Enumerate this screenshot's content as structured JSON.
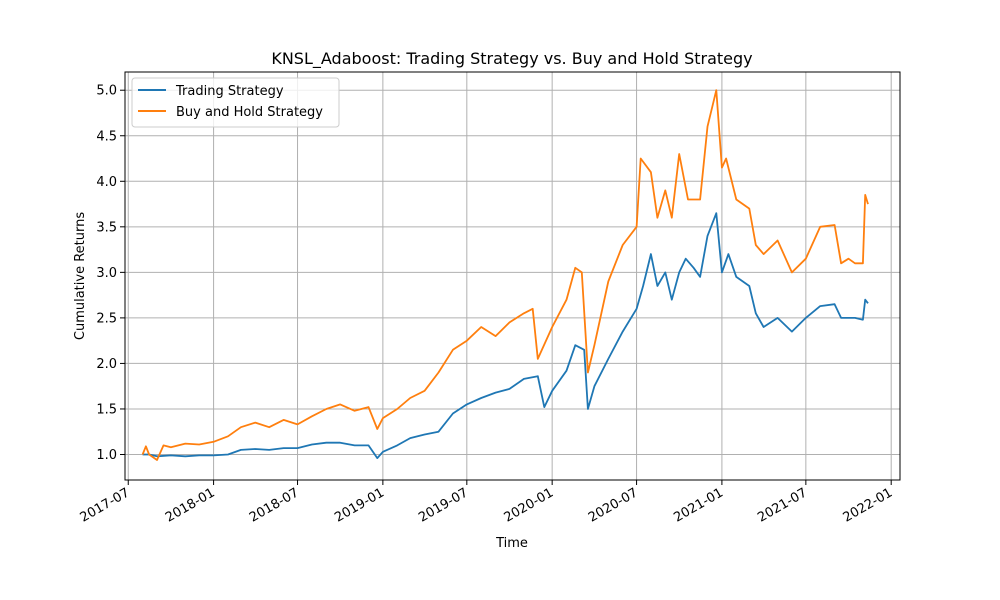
{
  "chart_data": {
    "type": "line",
    "title": "KNSL_Adaboost: Trading Strategy vs. Buy and Hold Strategy",
    "xlabel": "Time",
    "ylabel": "Cumulative Returns",
    "xlim": [
      "2017-06-24",
      "2022-01-20"
    ],
    "ylim": [
      0.72,
      5.2
    ],
    "x_ticks": [
      "2017-07-01",
      "2018-01-01",
      "2018-07-01",
      "2019-01-01",
      "2019-07-01",
      "2020-01-01",
      "2020-07-01",
      "2021-01-01",
      "2021-07-01",
      "2022-01-01"
    ],
    "x_tick_labels": [
      "2017-07",
      "2018-01",
      "2018-07",
      "2019-01",
      "2019-07",
      "2020-01",
      "2020-07",
      "2021-01",
      "2021-07",
      "2022-01"
    ],
    "y_ticks": [
      1.0,
      1.5,
      2.0,
      2.5,
      3.0,
      3.5,
      4.0,
      4.5,
      5.0
    ],
    "y_tick_labels": [
      "1.0",
      "1.5",
      "2.0",
      "2.5",
      "3.0",
      "3.5",
      "4.0",
      "4.5",
      "5.0"
    ],
    "grid": true,
    "legend_position": "top-left",
    "series": [
      {
        "name": "Trading Strategy",
        "color": "#1f77b4",
        "points": [
          [
            "2017-08-01",
            1.0
          ],
          [
            "2017-08-15",
            1.0
          ],
          [
            "2017-09-01",
            0.98
          ],
          [
            "2017-10-01",
            0.99
          ],
          [
            "2017-11-01",
            0.98
          ],
          [
            "2017-12-01",
            0.99
          ],
          [
            "2018-01-01",
            0.99
          ],
          [
            "2018-02-01",
            1.0
          ],
          [
            "2018-03-01",
            1.05
          ],
          [
            "2018-04-01",
            1.06
          ],
          [
            "2018-05-01",
            1.05
          ],
          [
            "2018-06-01",
            1.07
          ],
          [
            "2018-07-01",
            1.07
          ],
          [
            "2018-08-01",
            1.11
          ],
          [
            "2018-09-01",
            1.13
          ],
          [
            "2018-10-01",
            1.13
          ],
          [
            "2018-11-01",
            1.1
          ],
          [
            "2018-12-01",
            1.1
          ],
          [
            "2018-12-20",
            0.96
          ],
          [
            "2019-01-01",
            1.03
          ],
          [
            "2019-02-01",
            1.1
          ],
          [
            "2019-03-01",
            1.18
          ],
          [
            "2019-04-01",
            1.22
          ],
          [
            "2019-05-01",
            1.25
          ],
          [
            "2019-06-01",
            1.45
          ],
          [
            "2019-07-01",
            1.55
          ],
          [
            "2019-08-01",
            1.62
          ],
          [
            "2019-09-01",
            1.68
          ],
          [
            "2019-10-01",
            1.72
          ],
          [
            "2019-11-01",
            1.83
          ],
          [
            "2019-12-01",
            1.86
          ],
          [
            "2019-12-15",
            1.52
          ],
          [
            "2020-01-01",
            1.7
          ],
          [
            "2020-02-01",
            1.92
          ],
          [
            "2020-02-20",
            2.2
          ],
          [
            "2020-03-10",
            2.15
          ],
          [
            "2020-03-18",
            1.5
          ],
          [
            "2020-04-01",
            1.75
          ],
          [
            "2020-05-01",
            2.05
          ],
          [
            "2020-06-01",
            2.35
          ],
          [
            "2020-07-01",
            2.6
          ],
          [
            "2020-07-15",
            2.85
          ],
          [
            "2020-08-01",
            3.2
          ],
          [
            "2020-08-15",
            2.85
          ],
          [
            "2020-09-01",
            3.0
          ],
          [
            "2020-09-15",
            2.7
          ],
          [
            "2020-10-01",
            3.0
          ],
          [
            "2020-10-15",
            3.15
          ],
          [
            "2020-11-01",
            3.05
          ],
          [
            "2020-11-15",
            2.95
          ],
          [
            "2020-12-01",
            3.4
          ],
          [
            "2020-12-20",
            3.65
          ],
          [
            "2021-01-01",
            3.0
          ],
          [
            "2021-01-15",
            3.2
          ],
          [
            "2021-02-01",
            2.95
          ],
          [
            "2021-03-01",
            2.85
          ],
          [
            "2021-03-15",
            2.55
          ],
          [
            "2021-04-01",
            2.4
          ],
          [
            "2021-05-01",
            2.5
          ],
          [
            "2021-06-01",
            2.35
          ],
          [
            "2021-07-01",
            2.5
          ],
          [
            "2021-08-01",
            2.63
          ],
          [
            "2021-09-01",
            2.65
          ],
          [
            "2021-09-15",
            2.5
          ],
          [
            "2021-10-01",
            2.5
          ],
          [
            "2021-10-15",
            2.5
          ],
          [
            "2021-11-01",
            2.48
          ],
          [
            "2021-11-06",
            2.7
          ],
          [
            "2021-11-12",
            2.66
          ]
        ]
      },
      {
        "name": "Buy and Hold Strategy",
        "color": "#ff7f0e",
        "points": [
          [
            "2017-08-01",
            1.0
          ],
          [
            "2017-08-08",
            1.09
          ],
          [
            "2017-08-15",
            1.0
          ],
          [
            "2017-09-01",
            0.94
          ],
          [
            "2017-09-15",
            1.1
          ],
          [
            "2017-10-01",
            1.08
          ],
          [
            "2017-11-01",
            1.12
          ],
          [
            "2017-12-01",
            1.11
          ],
          [
            "2018-01-01",
            1.14
          ],
          [
            "2018-02-01",
            1.2
          ],
          [
            "2018-03-01",
            1.3
          ],
          [
            "2018-04-01",
            1.35
          ],
          [
            "2018-05-01",
            1.3
          ],
          [
            "2018-06-01",
            1.38
          ],
          [
            "2018-07-01",
            1.33
          ],
          [
            "2018-08-01",
            1.42
          ],
          [
            "2018-09-01",
            1.5
          ],
          [
            "2018-10-01",
            1.55
          ],
          [
            "2018-11-01",
            1.48
          ],
          [
            "2018-12-01",
            1.52
          ],
          [
            "2018-12-20",
            1.28
          ],
          [
            "2019-01-01",
            1.4
          ],
          [
            "2019-02-01",
            1.5
          ],
          [
            "2019-03-01",
            1.62
          ],
          [
            "2019-04-01",
            1.7
          ],
          [
            "2019-05-01",
            1.9
          ],
          [
            "2019-06-01",
            2.15
          ],
          [
            "2019-07-01",
            2.25
          ],
          [
            "2019-08-01",
            2.4
          ],
          [
            "2019-09-01",
            2.3
          ],
          [
            "2019-10-01",
            2.45
          ],
          [
            "2019-11-01",
            2.55
          ],
          [
            "2019-11-20",
            2.6
          ],
          [
            "2019-12-01",
            2.05
          ],
          [
            "2020-01-01",
            2.4
          ],
          [
            "2020-02-01",
            2.7
          ],
          [
            "2020-02-20",
            3.05
          ],
          [
            "2020-03-05",
            3.0
          ],
          [
            "2020-03-18",
            1.9
          ],
          [
            "2020-04-01",
            2.2
          ],
          [
            "2020-05-01",
            2.9
          ],
          [
            "2020-06-01",
            3.3
          ],
          [
            "2020-07-01",
            3.5
          ],
          [
            "2020-07-10",
            4.25
          ],
          [
            "2020-08-01",
            4.1
          ],
          [
            "2020-08-15",
            3.6
          ],
          [
            "2020-09-01",
            3.9
          ],
          [
            "2020-09-15",
            3.6
          ],
          [
            "2020-10-01",
            4.3
          ],
          [
            "2020-10-20",
            3.8
          ],
          [
            "2020-11-15",
            3.8
          ],
          [
            "2020-12-01",
            4.6
          ],
          [
            "2020-12-20",
            5.0
          ],
          [
            "2021-01-01",
            4.15
          ],
          [
            "2021-01-10",
            4.25
          ],
          [
            "2021-02-01",
            3.8
          ],
          [
            "2021-03-01",
            3.7
          ],
          [
            "2021-03-15",
            3.3
          ],
          [
            "2021-04-01",
            3.2
          ],
          [
            "2021-05-01",
            3.35
          ],
          [
            "2021-06-01",
            3.0
          ],
          [
            "2021-07-01",
            3.15
          ],
          [
            "2021-08-01",
            3.5
          ],
          [
            "2021-09-01",
            3.52
          ],
          [
            "2021-09-15",
            3.1
          ],
          [
            "2021-10-01",
            3.15
          ],
          [
            "2021-10-15",
            3.1
          ],
          [
            "2021-11-01",
            3.1
          ],
          [
            "2021-11-06",
            3.85
          ],
          [
            "2021-11-12",
            3.75
          ]
        ]
      }
    ]
  }
}
